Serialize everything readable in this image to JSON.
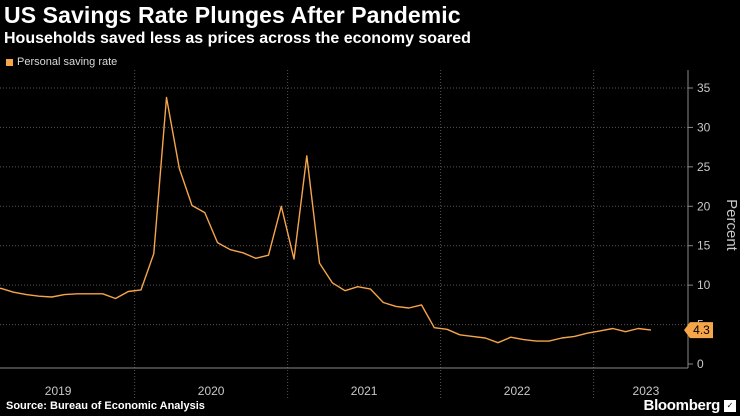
{
  "header": {
    "title": "US Savings Rate Plunges After Pandemic",
    "subtitle": "Households saved less as prices across the economy soared"
  },
  "footer": {
    "source": "Source: Bureau of Economic Analysis",
    "brand": "Bloomberg",
    "brand_mark": "✓"
  },
  "colors": {
    "background": "#000000",
    "series": "#f5a54a",
    "grid": "#555555",
    "text": "#c8c8c8"
  },
  "chart_data": {
    "type": "line",
    "title": "US Savings Rate Plunges After Pandemic",
    "subtitle": "Households saved less as prices across the economy soared",
    "xlabel": "",
    "ylabel": "Percent",
    "ylim": [
      0,
      35
    ],
    "yticks": [
      0,
      5,
      10,
      15,
      20,
      25,
      30,
      35
    ],
    "y_axis_side": "right",
    "grid": true,
    "legend_position": "top-left",
    "x_tick_labels": [
      "2019",
      "2020",
      "2021",
      "2022",
      "2023"
    ],
    "last_value_label": "4.3",
    "series": [
      {
        "name": "Personal saving rate",
        "color": "#f5a54a",
        "x": [
          "2019-01",
          "2019-02",
          "2019-03",
          "2019-04",
          "2019-05",
          "2019-06",
          "2019-07",
          "2019-08",
          "2019-09",
          "2019-10",
          "2019-11",
          "2019-12",
          "2020-01",
          "2020-02",
          "2020-03",
          "2020-04",
          "2020-05",
          "2020-06",
          "2020-07",
          "2020-08",
          "2020-09",
          "2020-10",
          "2020-11",
          "2020-12",
          "2021-01",
          "2021-02",
          "2021-03",
          "2021-04",
          "2021-05",
          "2021-06",
          "2021-07",
          "2021-08",
          "2021-09",
          "2021-10",
          "2021-11",
          "2021-12",
          "2022-01",
          "2022-02",
          "2022-03",
          "2022-04",
          "2022-05",
          "2022-06",
          "2022-07",
          "2022-08",
          "2022-09",
          "2022-10",
          "2022-11",
          "2022-12",
          "2023-01",
          "2023-02",
          "2023-03",
          "2023-04",
          "2023-05"
        ],
        "values": [
          9.3,
          9.6,
          9.1,
          8.8,
          8.6,
          8.5,
          8.8,
          8.9,
          8.9,
          8.9,
          8.3,
          9.2,
          9.4,
          14.0,
          33.8,
          24.8,
          20.1,
          19.2,
          15.4,
          14.5,
          14.1,
          13.4,
          13.8,
          20.0,
          13.3,
          26.4,
          12.8,
          10.3,
          9.3,
          9.8,
          9.5,
          7.8,
          7.3,
          7.1,
          7.5,
          4.6,
          4.4,
          3.7,
          3.5,
          3.3,
          2.7,
          3.4,
          3.1,
          2.9,
          2.9,
          3.3,
          3.5,
          3.9,
          4.2,
          4.5,
          4.1,
          4.5,
          4.3
        ]
      }
    ]
  }
}
